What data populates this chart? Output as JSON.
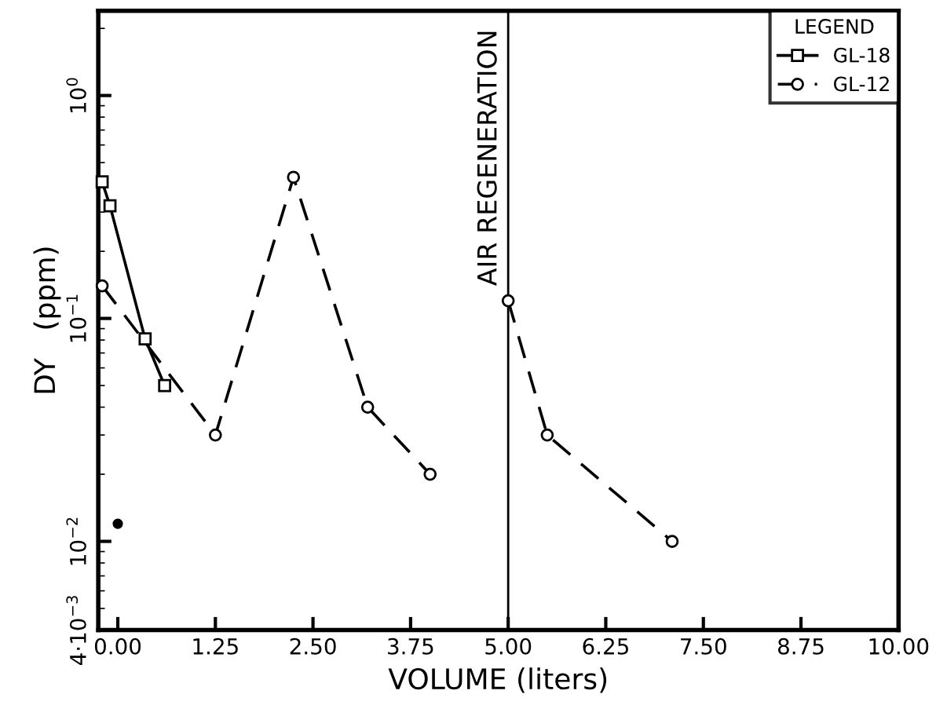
{
  "chart_data": {
    "type": "line",
    "xlabel": "VOLUME (liters)",
    "ylabel": "DY   (ppm)",
    "legend_title": "LEGEND",
    "legend": "top right",
    "log": "y",
    "grid": false,
    "xlim": [
      -0.25,
      10
    ],
    "xticks": [
      {
        "value": 0,
        "label": "0.00"
      },
      {
        "value": 1.25,
        "label": "1.25"
      },
      {
        "value": 2.5,
        "label": "2.50"
      },
      {
        "value": 3.75,
        "label": "3.75"
      },
      {
        "value": 5,
        "label": "5.00"
      },
      {
        "value": 6.25,
        "label": "6.25"
      },
      {
        "value": 7.5,
        "label": "7.50"
      },
      {
        "value": 8.75,
        "label": "8.75"
      },
      {
        "value": 10,
        "label": "10.00"
      }
    ],
    "ylim": [
      0.004,
      2.4
    ],
    "yticks": [
      {
        "value": 0.004,
        "label": "4·10$^{−3}$"
      },
      {
        "value": 0.01,
        "label": "10$^{−2}$"
      },
      {
        "value": 0.1,
        "label": "10$^{−1}$"
      },
      {
        "value": 1,
        "label": "10$^{0}$"
      }
    ],
    "ref_lines": [
      {
        "axis": "x",
        "value": 5.0,
        "label": "AIR REGENERATION",
        "color": "#000000",
        "line_style": "solid"
      }
    ],
    "series": [
      {
        "name": "GL-18",
        "color": "#000000",
        "marker": "square",
        "line_style": "solid",
        "x": [
          -0.2,
          -0.1,
          0.35,
          0.6
        ],
        "values": [
          0.41,
          0.32,
          0.081,
          0.05
        ]
      },
      {
        "name": "GL-12",
        "color": "#000000",
        "marker": "circle",
        "line_style": "dashed",
        "x": [
          -0.2,
          1.25,
          2.25,
          3.2,
          4.0,
          null,
          5.0,
          5.5,
          7.1
        ],
        "values": [
          0.14,
          0.03,
          0.43,
          0.04,
          0.02,
          null,
          0.12,
          0.03,
          0.01
        ]
      },
      {
        "type": "scatter",
        "color": "#000000",
        "marker": "circle",
        "x": [
          0.0
        ],
        "values": [
          0.012
        ]
      }
    ]
  }
}
